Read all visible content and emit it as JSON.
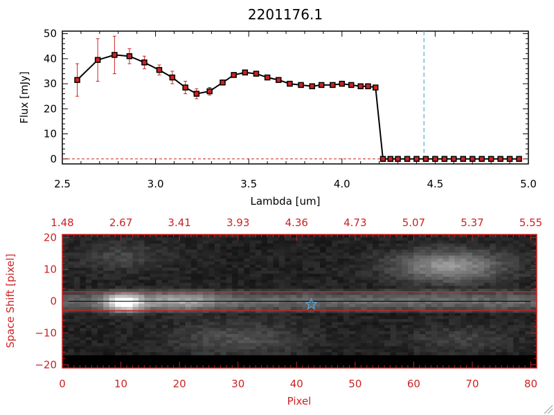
{
  "title": "2201176.1",
  "chart_data": [
    {
      "type": "line",
      "title": "2201176.1",
      "xlabel": "Lambda [um]",
      "ylabel": "Flux [mJy]",
      "xlim": [
        2.5,
        5.0
      ],
      "ylim": [
        -2,
        51
      ],
      "xticks": [
        2.5,
        3.0,
        3.5,
        4.0,
        4.5,
        5.0
      ],
      "xtick_labels": [
        "2.5",
        "3.0",
        "3.5",
        "4.0",
        "4.5",
        "5.0"
      ],
      "yticks": [
        0,
        10,
        20,
        30,
        40,
        50
      ],
      "ytick_labels": [
        "0",
        "10",
        "20",
        "30",
        "40",
        "50"
      ],
      "series": [
        {
          "x": [
            2.58,
            2.69,
            2.78,
            2.86,
            2.94,
            3.02,
            3.09,
            3.16,
            3.22,
            3.29,
            3.36,
            3.42,
            3.48,
            3.54,
            3.6,
            3.66,
            3.72,
            3.78,
            3.84,
            3.89,
            3.95,
            4.0,
            4.05,
            4.1,
            4.14,
            4.18,
            4.22,
            4.26,
            4.3,
            4.35,
            4.4,
            4.45,
            4.5,
            4.55,
            4.6,
            4.65,
            4.7,
            4.75,
            4.8,
            4.85,
            4.9,
            4.95
          ],
          "y": [
            31.5,
            39.5,
            41.5,
            41.0,
            38.5,
            35.5,
            32.5,
            28.5,
            26.0,
            27.0,
            30.5,
            33.5,
            34.5,
            34.0,
            32.5,
            31.5,
            30.0,
            29.5,
            29.0,
            29.5,
            29.5,
            30.0,
            29.5,
            29.0,
            29.0,
            28.5,
            0,
            0,
            0,
            0,
            0,
            0,
            0,
            0,
            0,
            0,
            0,
            0,
            0,
            0,
            0,
            0
          ],
          "yerr": [
            6.5,
            8.5,
            7.5,
            3.0,
            2.5,
            2.0,
            2.5,
            2.5,
            2.0,
            1.5,
            1.0,
            0.8,
            0.8,
            0.8,
            0.8,
            0.8,
            0.8,
            0.8,
            0.8,
            0.8,
            0.8,
            0.8,
            0.8,
            0.8,
            0.8,
            0.8,
            0.3,
            0.3,
            0.3,
            0.3,
            0.3,
            0.3,
            0.3,
            0.3,
            0.3,
            0.3,
            0.3,
            0.3,
            0.3,
            0.3,
            0.3,
            0.3
          ]
        }
      ],
      "vline": 4.44,
      "vline_color": "#5aa7d6",
      "hline": 0,
      "hline_color": "#cc2222"
    },
    {
      "type": "heatmap",
      "xlabel": "Pixel",
      "ylabel": "Space Shift [pixel]",
      "xlim": [
        0,
        81
      ],
      "ylim": [
        -21,
        21
      ],
      "xticks": [
        0,
        10,
        20,
        30,
        40,
        50,
        60,
        70,
        80
      ],
      "xtick_labels": [
        "0",
        "10",
        "20",
        "30",
        "40",
        "50",
        "60",
        "70",
        "80"
      ],
      "yticks": [
        -20,
        -10,
        0,
        10,
        20
      ],
      "ytick_labels": [
        "−20",
        "−10",
        "0",
        "10",
        "20"
      ],
      "top_tick_labels": [
        "1.48",
        "2.67",
        "3.41",
        "3.93",
        "4.36",
        "4.73",
        "5.07",
        "5.37",
        "5.55"
      ],
      "aperture": [
        -3,
        3
      ],
      "source_marker": {
        "x": 42.5,
        "y": -1
      },
      "axis_color": "#cc2222",
      "line_color": "#dd2222",
      "marker_color": "#5aa7d6"
    }
  ]
}
